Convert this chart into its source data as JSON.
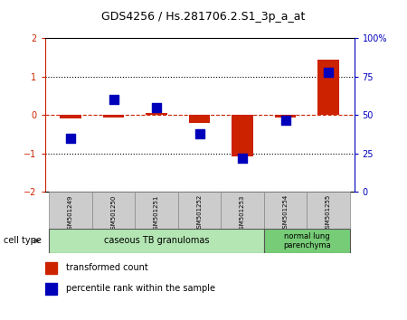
{
  "title": "GDS4256 / Hs.281706.2.S1_3p_a_at",
  "samples": [
    "GSM501249",
    "GSM501250",
    "GSM501251",
    "GSM501252",
    "GSM501253",
    "GSM501254",
    "GSM501255"
  ],
  "red_bars": [
    -0.08,
    -0.05,
    0.05,
    -0.2,
    -1.08,
    -0.05,
    1.45
  ],
  "blue_dots_pct": [
    35,
    60,
    55,
    38,
    22,
    47,
    78
  ],
  "ylim_left": [
    -2,
    2
  ],
  "ylim_right": [
    0,
    100
  ],
  "yticks_left": [
    -2,
    -1,
    0,
    1,
    2
  ],
  "yticks_right": [
    0,
    25,
    50,
    75,
    100
  ],
  "ytick_labels_right": [
    "0",
    "25",
    "50",
    "75",
    "100%"
  ],
  "group1_samples": [
    0,
    1,
    2,
    3,
    4
  ],
  "group1_label": "caseous TB granulomas",
  "group1_color": "#b3e6b3",
  "group2_samples": [
    5,
    6
  ],
  "group2_label": "normal lung\nparenchyma",
  "group2_color": "#77cc77",
  "cell_type_label": "cell type",
  "legend_items": [
    {
      "label": "transformed count",
      "color": "#cc2200"
    },
    {
      "label": "percentile rank within the sample",
      "color": "#0000bb"
    }
  ],
  "red_color": "#cc2200",
  "blue_color": "#0000bb",
  "bar_width": 0.5,
  "dot_size": 45,
  "bg_color": "#ffffff",
  "zero_line_color": "#cc2200",
  "sample_box_color": "#cccccc",
  "title_fontsize": 9,
  "tick_fontsize": 7,
  "sample_fontsize": 5,
  "group_fontsize": 7,
  "legend_fontsize": 7
}
